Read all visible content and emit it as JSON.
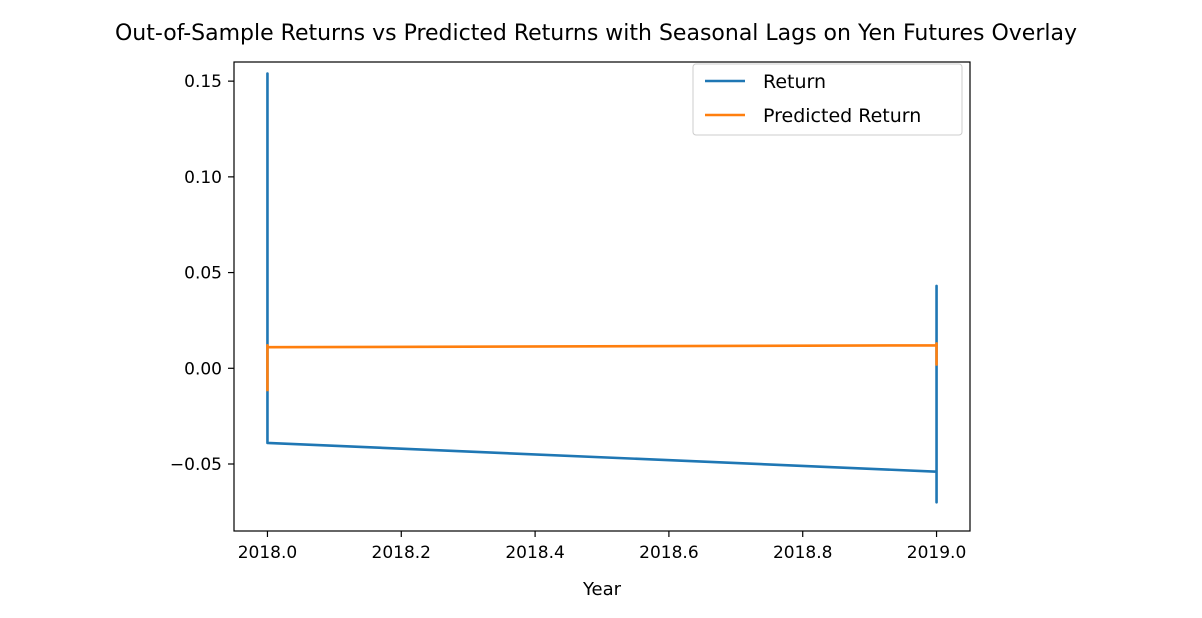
{
  "chart_data": {
    "type": "line",
    "title": "Out-of-Sample Returns vs Predicted Returns with Seasonal Lags on Yen Futures Overlay",
    "xlabel": "Year",
    "ylabel": "",
    "xlim": [
      2017.95,
      2019.05
    ],
    "ylim": [
      -0.085,
      0.16
    ],
    "xticks": [
      2018.0,
      2018.2,
      2018.4,
      2018.6,
      2018.8,
      2019.0
    ],
    "xtick_labels": [
      "2018.0",
      "2018.2",
      "2018.4",
      "2018.6",
      "2018.8",
      "2019.0"
    ],
    "yticks": [
      -0.05,
      0.0,
      0.05,
      0.1,
      0.15
    ],
    "ytick_labels": [
      "−0.05",
      "0.00",
      "0.05",
      "0.10",
      "0.15"
    ],
    "grid": false,
    "legend_position": "top-right",
    "series": [
      {
        "name": "Return",
        "color": "#1f77b4",
        "x": [
          2018.0,
          2018.0,
          2018.0,
          2018.0,
          2019.0,
          2019.0,
          2019.0,
          2019.0,
          2019.0,
          2019.0
        ],
        "y": [
          -0.012,
          0.154,
          -0.02,
          -0.039,
          -0.054,
          0.043,
          -0.07,
          0.035,
          -0.03,
          0.002
        ]
      },
      {
        "name": "Predicted Return",
        "color": "#ff7f0e",
        "x": [
          2018.0,
          2018.0,
          2018.0,
          2019.0,
          2019.0,
          2019.0,
          2019.0
        ],
        "y": [
          -0.012,
          0.012,
          0.011,
          0.012,
          0.002,
          0.013,
          0.012
        ]
      }
    ]
  }
}
